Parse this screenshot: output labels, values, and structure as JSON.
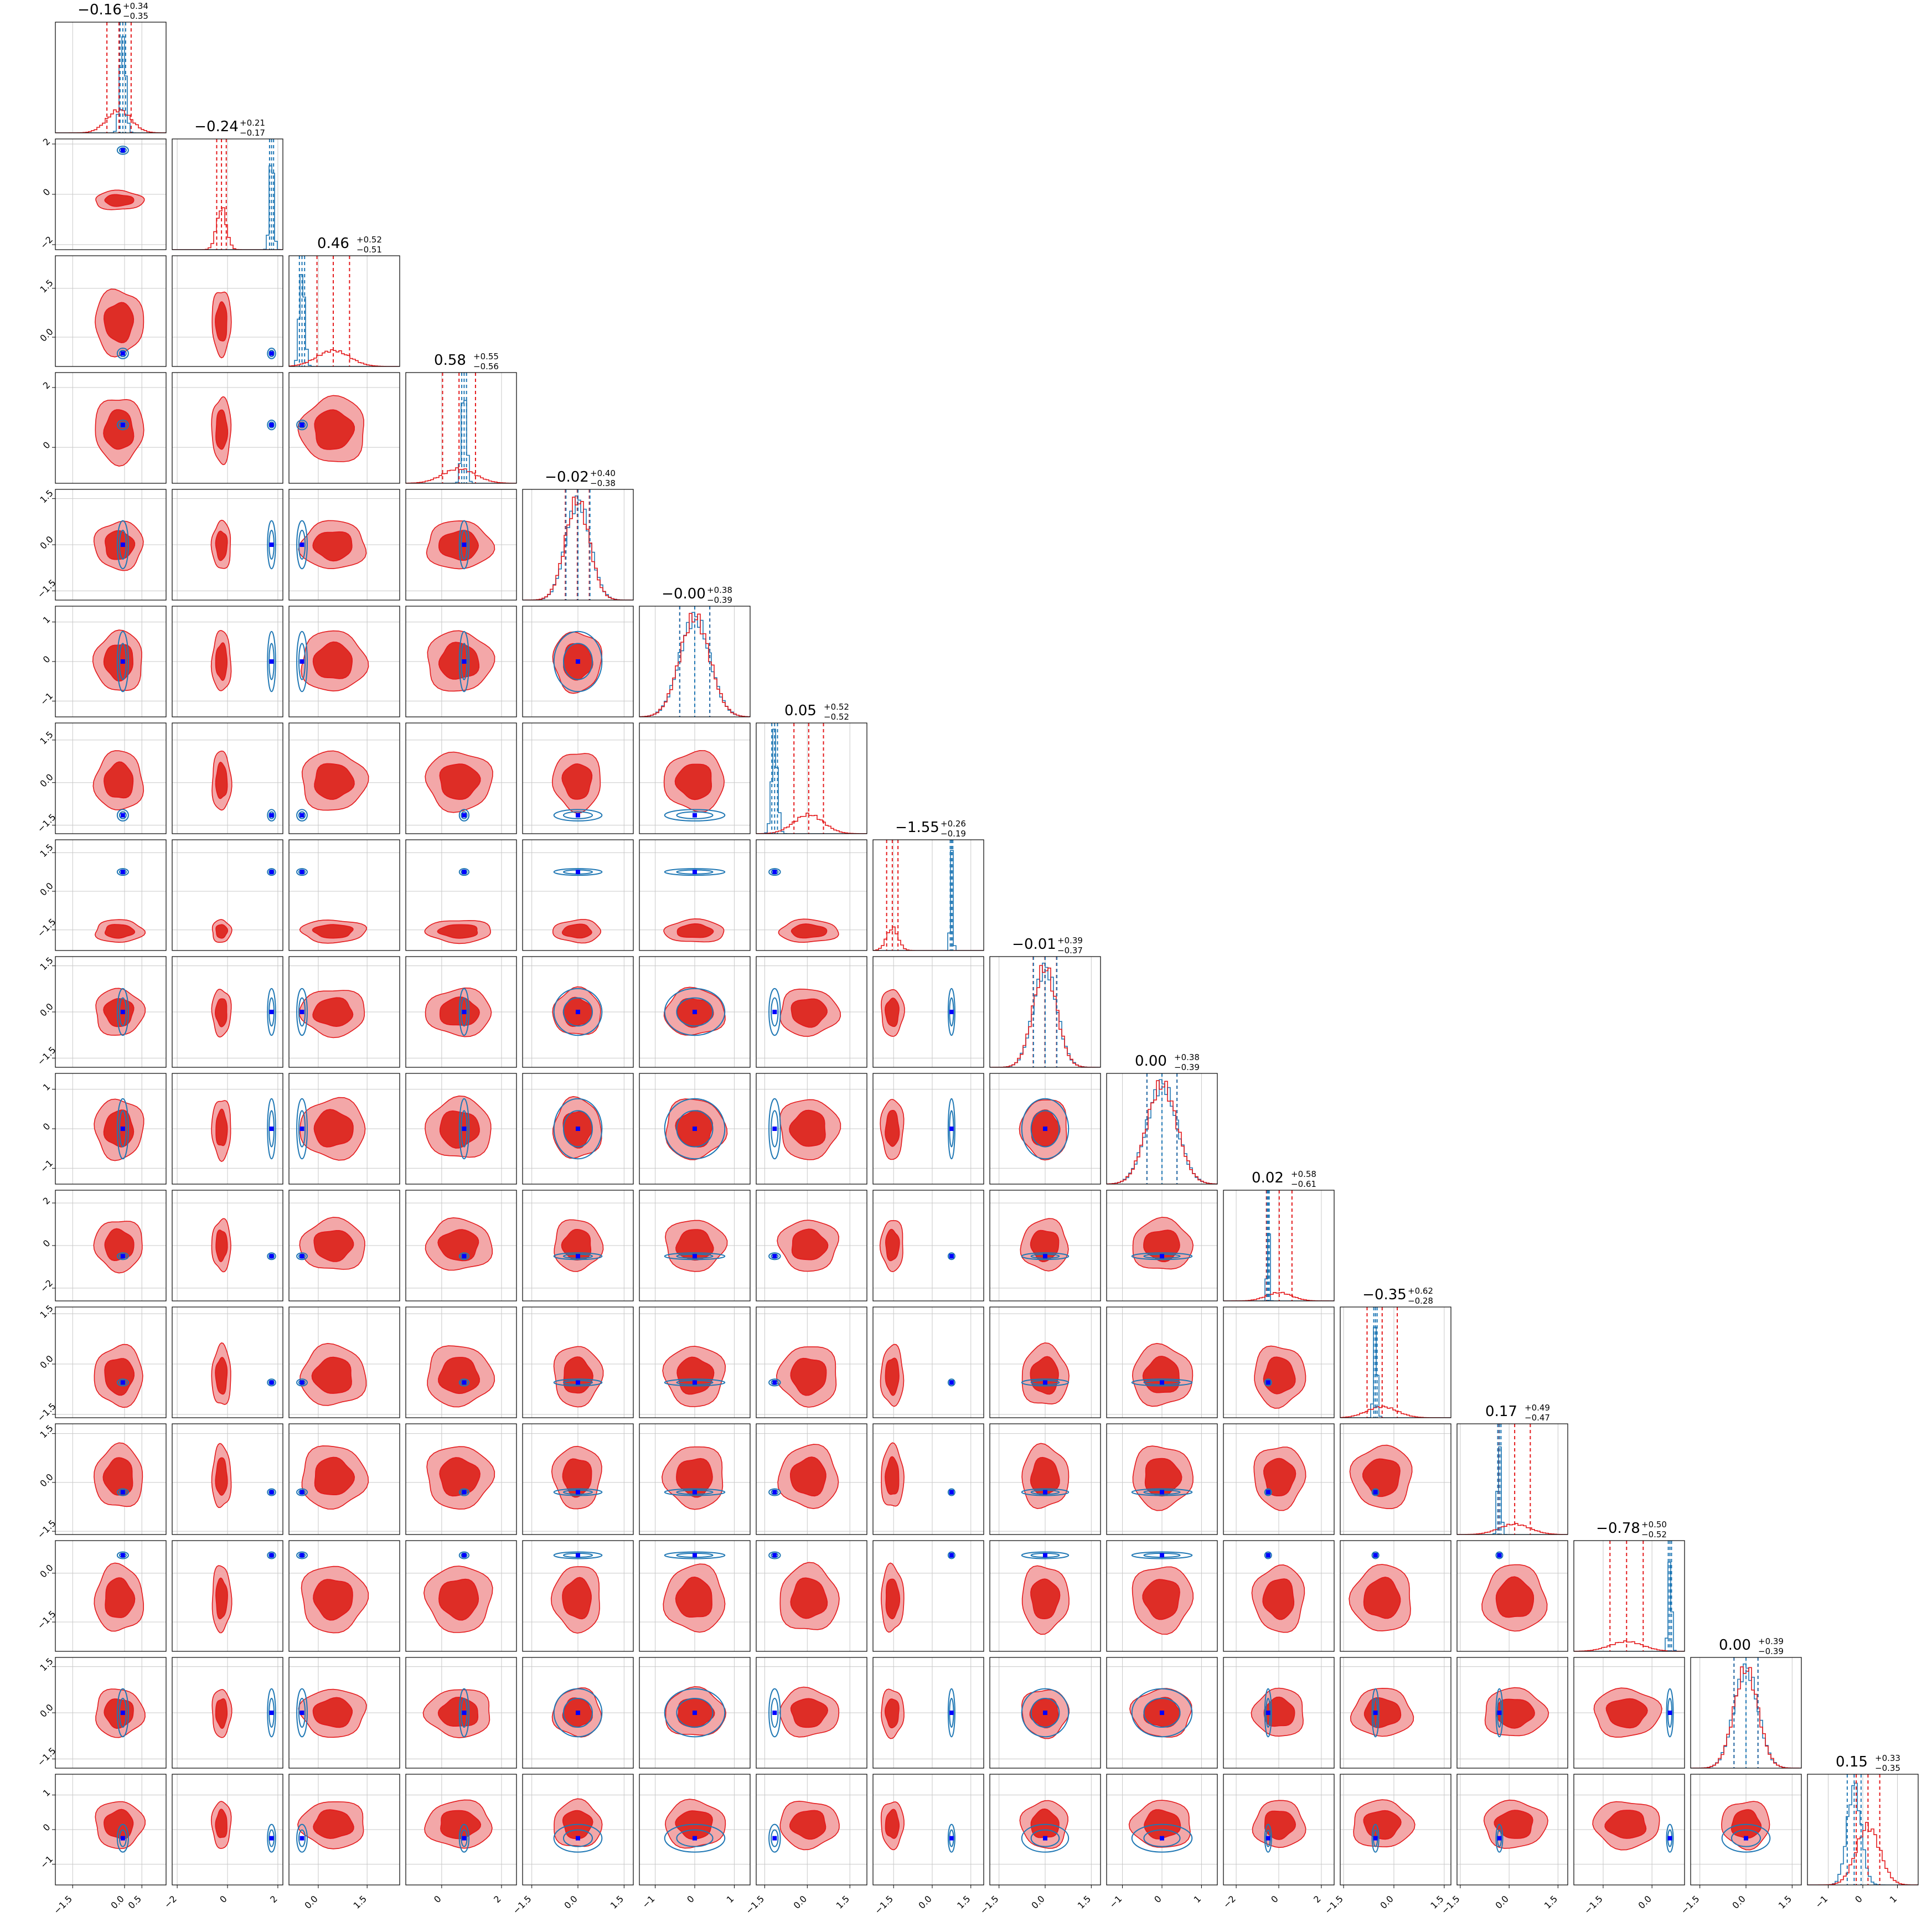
{
  "figure": {
    "n_params": 16,
    "colors": {
      "posterior_a": "#e41a1c",
      "posterior_a_fill_outer": "#f3a7a8",
      "posterior_a_fill_inner": "#de2d26",
      "posterior_b": "#1f77b4",
      "truth_marker": "#0000ff"
    }
  },
  "chart_data": {
    "type": "corner",
    "grid": true,
    "titles": [
      {
        "median": "−0.16",
        "plus": "+0.34",
        "minus": "−0.35"
      },
      {
        "median": "−0.24",
        "plus": "+0.21",
        "minus": "−0.17"
      },
      {
        "median": "0.46",
        "plus": "+0.52",
        "minus": "−0.51"
      },
      {
        "median": "0.58",
        "plus": "+0.55",
        "minus": "−0.56"
      },
      {
        "median": "−0.02",
        "plus": "+0.40",
        "minus": "−0.38"
      },
      {
        "median": "−0.00",
        "plus": "+0.38",
        "minus": "−0.39"
      },
      {
        "median": "0.05",
        "plus": "+0.52",
        "minus": "−0.52"
      },
      {
        "median": "−1.55",
        "plus": "+0.26",
        "minus": "−0.19"
      },
      {
        "median": "−0.01",
        "plus": "+0.39",
        "minus": "−0.37"
      },
      {
        "median": "0.00",
        "plus": "+0.38",
        "minus": "−0.39"
      },
      {
        "median": "0.02",
        "plus": "+0.58",
        "minus": "−0.61"
      },
      {
        "median": "−0.35",
        "plus": "+0.62",
        "minus": "−0.28"
      },
      {
        "median": "0.17",
        "plus": "+0.49",
        "minus": "−0.47"
      },
      {
        "median": "−0.78",
        "plus": "+0.50",
        "minus": "−0.52"
      },
      {
        "median": "0.00",
        "plus": "+0.39",
        "minus": "−0.39"
      },
      {
        "median": "0.15",
        "plus": "+0.33",
        "minus": "−0.35"
      }
    ],
    "params": [
      {
        "range": [
          -2.0,
          1.2
        ],
        "ticks": [
          "−1.5",
          "0.0",
          "0.5"
        ],
        "tick_vals": [
          -1.5,
          0.0,
          0.5
        ],
        "red_center": -0.16,
        "red_sd": 0.35,
        "blue_center": -0.05,
        "blue_sd": 0.08
      },
      {
        "range": [
          -2.2,
          2.2
        ],
        "ticks": [
          "−2",
          "0",
          "2"
        ],
        "tick_vals": [
          -2,
          0,
          2
        ],
        "red_center": -0.24,
        "red_sd": 0.19,
        "blue_center": 1.75,
        "blue_sd": 0.08
      },
      {
        "range": [
          -0.9,
          2.5
        ],
        "ticks": [
          "0.0",
          "1.5"
        ],
        "tick_vals": [
          0.0,
          1.5
        ],
        "red_center": 0.46,
        "red_sd": 0.5,
        "blue_center": -0.5,
        "blue_sd": 0.08
      },
      {
        "range": [
          -1.2,
          2.5
        ],
        "ticks": [
          "0",
          "2"
        ],
        "tick_vals": [
          0,
          2
        ],
        "red_center": 0.58,
        "red_sd": 0.55,
        "blue_center": 0.75,
        "blue_sd": 0.08
      },
      {
        "range": [
          -1.8,
          1.8
        ],
        "ticks": [
          "−1.5",
          "0.0",
          "1.5"
        ],
        "tick_vals": [
          -1.5,
          0.0,
          1.5
        ],
        "red_center": -0.02,
        "red_sd": 0.39,
        "blue_center": 0.0,
        "blue_sd": 0.39
      },
      {
        "range": [
          -1.4,
          1.4
        ],
        "ticks": [
          "−1",
          "0",
          "1"
        ],
        "tick_vals": [
          -1,
          0,
          1
        ],
        "red_center": 0.0,
        "red_sd": 0.38,
        "blue_center": 0.0,
        "blue_sd": 0.38
      },
      {
        "range": [
          -1.8,
          2.1
        ],
        "ticks": [
          "−1.5",
          "0.0",
          "1.5"
        ],
        "tick_vals": [
          -1.5,
          0.0,
          1.5
        ],
        "red_center": 0.05,
        "red_sd": 0.52,
        "blue_center": -1.15,
        "blue_sd": 0.1
      },
      {
        "range": [
          -2.3,
          2.0
        ],
        "ticks": [
          "−1.5",
          "0.0",
          "1.5"
        ],
        "tick_vals": [
          -1.5,
          0.0,
          1.5
        ],
        "red_center": -1.55,
        "red_sd": 0.22,
        "blue_center": 0.75,
        "blue_sd": 0.05
      },
      {
        "range": [
          -1.8,
          1.8
        ],
        "ticks": [
          "−1.5",
          "0.0",
          "1.5"
        ],
        "tick_vals": [
          -1.5,
          0.0,
          1.5
        ],
        "red_center": -0.01,
        "red_sd": 0.38,
        "blue_center": 0.0,
        "blue_sd": 0.38
      },
      {
        "range": [
          -1.4,
          1.4
        ],
        "ticks": [
          "−1",
          "0",
          "1"
        ],
        "tick_vals": [
          -1,
          0,
          1
        ],
        "red_center": 0.0,
        "red_sd": 0.38,
        "blue_center": 0.0,
        "blue_sd": 0.38
      },
      {
        "range": [
          -2.6,
          2.6
        ],
        "ticks": [
          "−2",
          "0",
          "2"
        ],
        "tick_vals": [
          -2,
          0,
          2
        ],
        "red_center": 0.02,
        "red_sd": 0.6,
        "blue_center": -0.5,
        "blue_sd": 0.05
      },
      {
        "range": [
          -1.6,
          1.7
        ],
        "ticks": [
          "−1.5",
          "0.0",
          "1.5"
        ],
        "tick_vals": [
          -1.5,
          0.0,
          1.5
        ],
        "red_center": -0.35,
        "red_sd": 0.45,
        "blue_center": -0.55,
        "blue_sd": 0.05
      },
      {
        "range": [
          -1.6,
          1.8
        ],
        "ticks": [
          "−1.5",
          "0.0",
          "1.5"
        ],
        "tick_vals": [
          -1.5,
          0.0,
          1.5
        ],
        "red_center": 0.17,
        "red_sd": 0.48,
        "blue_center": -0.3,
        "blue_sd": 0.05
      },
      {
        "range": [
          -2.4,
          1.0
        ],
        "ticks": [
          "−1.5",
          "0.0"
        ],
        "tick_vals": [
          -1.5,
          0.0
        ],
        "red_center": -0.78,
        "red_sd": 0.51,
        "blue_center": 0.55,
        "blue_sd": 0.05
      },
      {
        "range": [
          -1.8,
          1.8
        ],
        "ticks": [
          "−1.5",
          "0.0",
          "1.5"
        ],
        "tick_vals": [
          -1.5,
          0.0,
          1.5
        ],
        "red_center": 0.0,
        "red_sd": 0.39,
        "blue_center": 0.0,
        "blue_sd": 0.39
      },
      {
        "range": [
          -1.6,
          1.6
        ],
        "ticks": [
          "−1",
          "0",
          "1"
        ],
        "tick_vals": [
          -1,
          0,
          1
        ],
        "red_center": 0.15,
        "red_sd": 0.34,
        "blue_center": -0.25,
        "blue_sd": 0.2
      }
    ]
  }
}
